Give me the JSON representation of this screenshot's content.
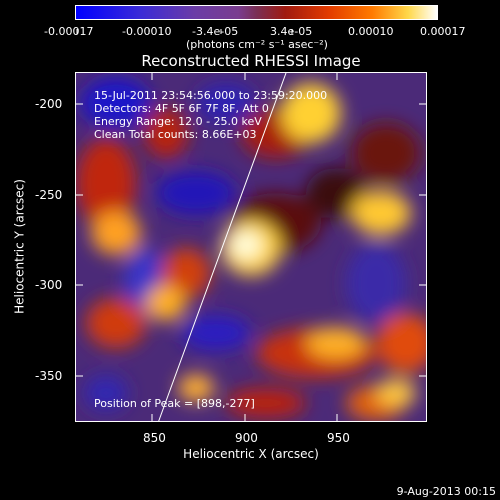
{
  "colorbar": {
    "ticks": [
      "-0.00017",
      "-0.00010",
      "-3.4e-05",
      "3.4e-05",
      "0.00010",
      "0.00017"
    ],
    "unit": "(photons cm⁻² s⁻¹ asec⁻²)",
    "colors": [
      "#0000ff",
      "#6b3ca6",
      "#7a2f55",
      "#e23b00",
      "#ff7a00",
      "#ffffff"
    ]
  },
  "title": "Reconstructed RHESSI Image",
  "overlay": {
    "line1": "15-Jul-2011 23:54:56.000 to 23:59:20.000",
    "line2": "Detectors: 4F 5F 6F 7F 8F, Att 0",
    "line3": "Energy Range: 12.0 - 25.0 keV",
    "line4": "Clean    Total counts: 8.66E+03",
    "peak": "Position of Peak = [898,-277]"
  },
  "axes": {
    "xlabel": "Heliocentric X (arcsec)",
    "ylabel": "Heliocentric Y (arcsec)",
    "x_ticks": [
      "850",
      "900",
      "950"
    ],
    "y_ticks": [
      "-200",
      "-250",
      "-300",
      "-350"
    ]
  },
  "footer_date": "9-Aug-2013 00:15"
}
